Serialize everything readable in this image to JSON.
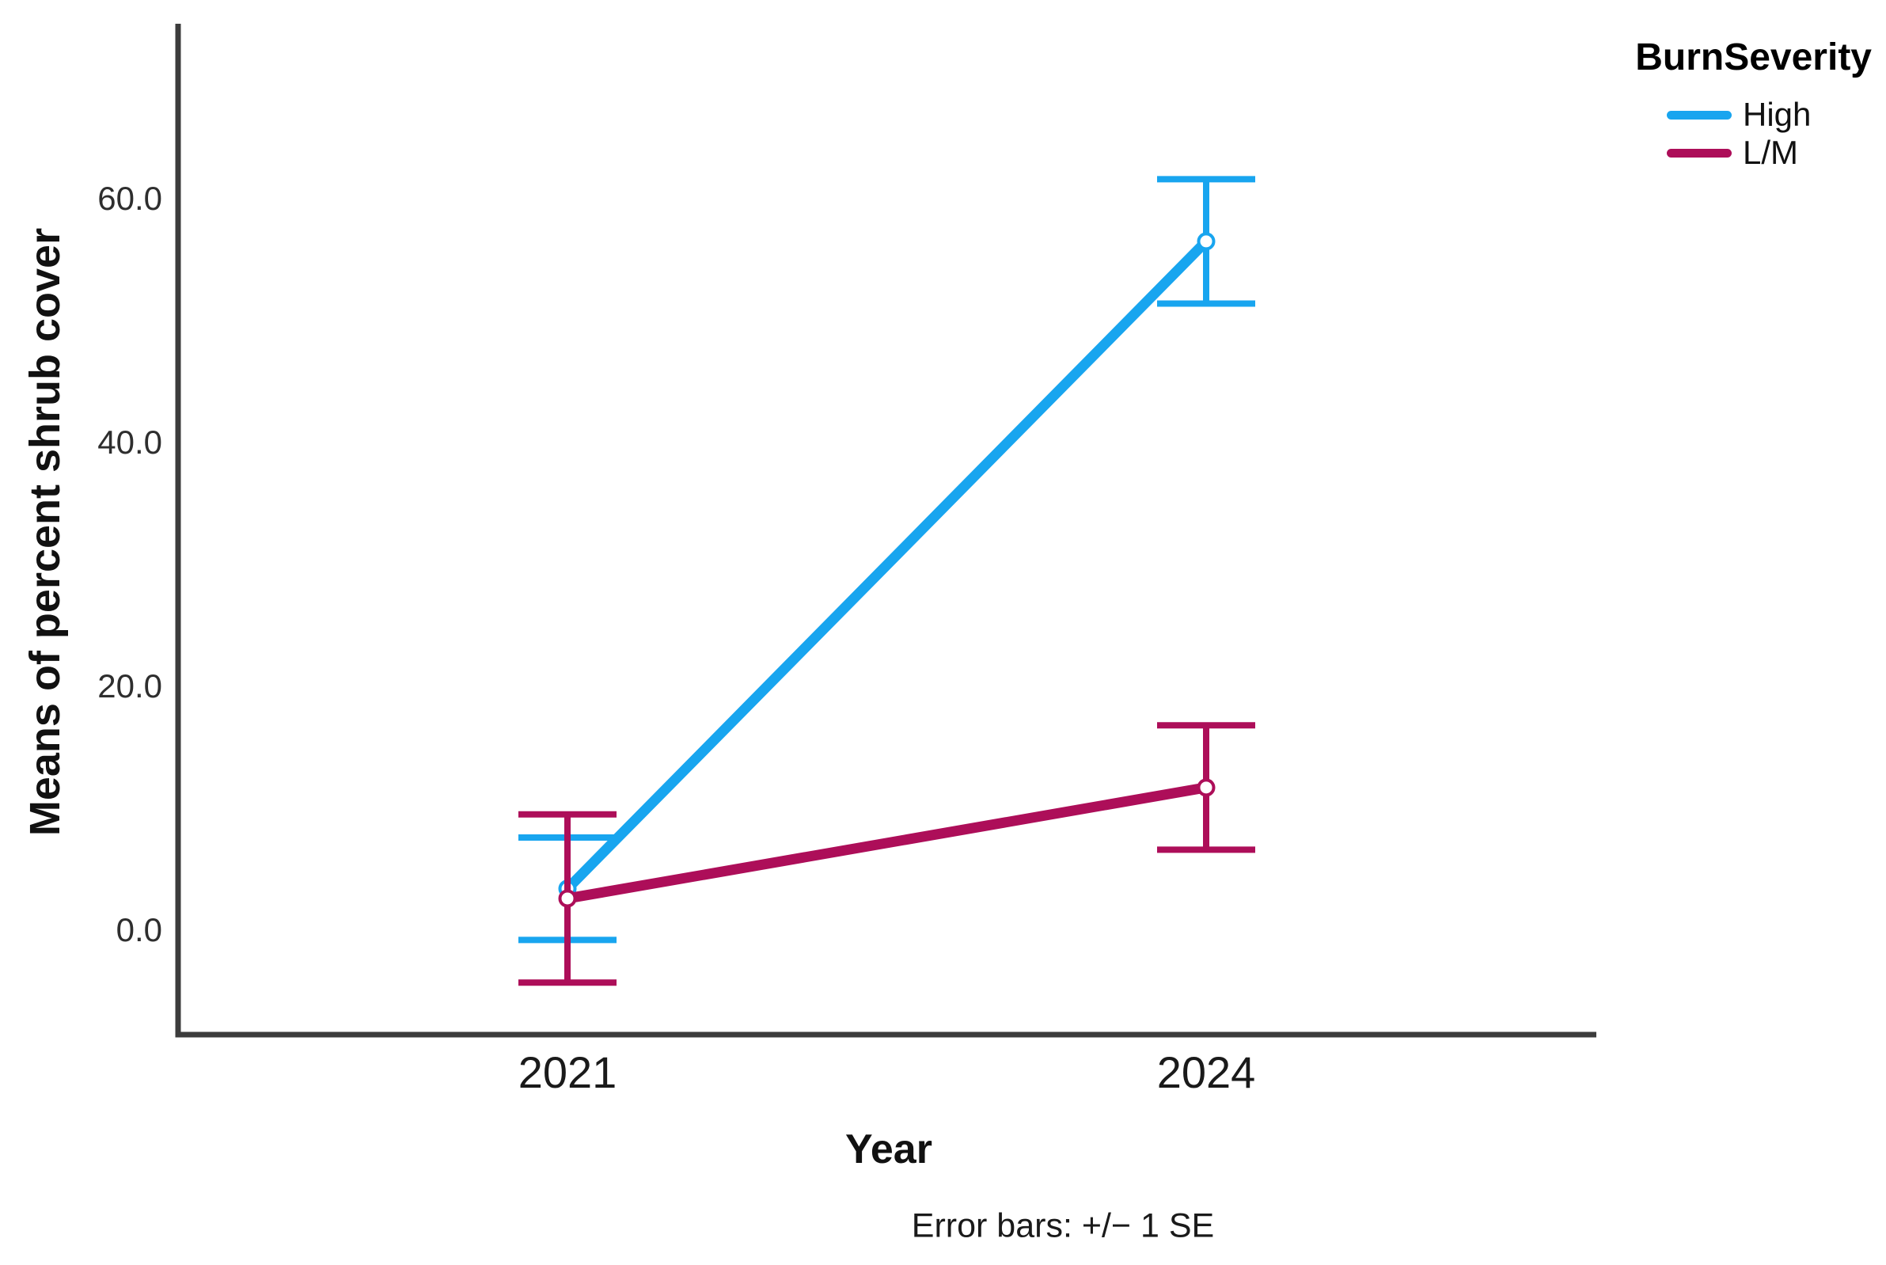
{
  "chart_data": {
    "type": "line",
    "categories": [
      "2021",
      "2024"
    ],
    "series": [
      {
        "name": "High",
        "color": "#18a5ef",
        "means": [
          3.4,
          56.5
        ],
        "se": [
          4.2,
          5.1
        ]
      },
      {
        "name": "L/M",
        "color": "#ad0e59",
        "means": [
          2.6,
          11.7
        ],
        "se": [
          6.9,
          5.1
        ]
      }
    ],
    "xlabel": "Year",
    "ylabel": "Means of percent shrub cover",
    "ytick_values": [
      0,
      20,
      40,
      60
    ],
    "ytick_labels": [
      "0.0",
      "20.0",
      "40.0",
      "60.0"
    ],
    "ylim": [
      -8.6,
      74.4
    ],
    "grid": false,
    "marker": "open-circle",
    "error_bar_definition": "+/- 1 SE",
    "legend": {
      "title": "BurnSeverity",
      "position": "top-right"
    },
    "footnote": "Error bars: +/− 1 SE"
  },
  "colors": {
    "axis": "#3c3c3c",
    "high_series": "#18a5ef",
    "lm_series": "#ad0e59",
    "background": "#ffffff"
  }
}
